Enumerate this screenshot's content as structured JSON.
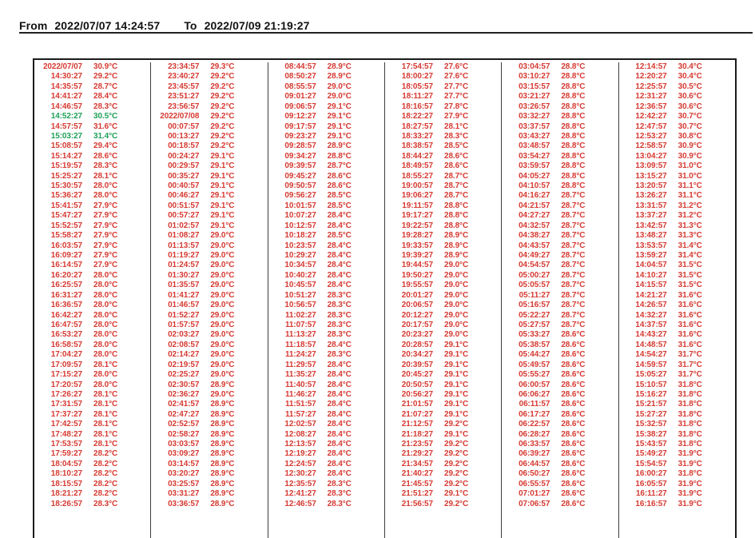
{
  "header": {
    "from_label": "From",
    "from_value": "2022/07/07 14:24:57",
    "to_label": "To",
    "to_value": "2022/07/09 21:19:27"
  },
  "colors": {
    "text_red": "#d63a32",
    "text_green": "#1fa05a",
    "border": "#1b1b1b"
  },
  "table": {
    "unit": "°C",
    "record_interval": "00:05:30",
    "green_cells": [
      [
        0,
        5
      ],
      [
        0,
        7
      ]
    ],
    "columns": [
      {
        "rows": [
          [
            "2022/07/07",
            "30.9°C"
          ],
          [
            "14:30:27",
            "29.2°C"
          ],
          [
            "14:35:57",
            "28.7°C"
          ],
          [
            "14:41:27",
            "28.4°C"
          ],
          [
            "14:46:57",
            "28.3°C"
          ],
          [
            "14:52:27",
            "30.5°C"
          ],
          [
            "14:57:57",
            "31.6°C"
          ],
          [
            "15:03:27",
            "31.4°C"
          ],
          [
            "15:08:57",
            "29.4°C"
          ],
          [
            "15:14:27",
            "28.6°C"
          ],
          [
            "15:19:57",
            "28.3°C"
          ],
          [
            "15:25:27",
            "28.1°C"
          ],
          [
            "15:30:57",
            "28.0°C"
          ],
          [
            "15:36:27",
            "28.0°C"
          ],
          [
            "15:41:57",
            "27.9°C"
          ],
          [
            "15:47:27",
            "27.9°C"
          ],
          [
            "15:52:57",
            "27.9°C"
          ],
          [
            "15:58:27",
            "27.9°C"
          ],
          [
            "16:03:57",
            "27.9°C"
          ],
          [
            "16:09:27",
            "27.9°C"
          ],
          [
            "16:14:57",
            "27.9°C"
          ],
          [
            "16:20:27",
            "28.0°C"
          ],
          [
            "16:25:57",
            "28.0°C"
          ],
          [
            "16:31:27",
            "28.0°C"
          ],
          [
            "16:36:57",
            "28.0°C"
          ],
          [
            "16:42:27",
            "28.0°C"
          ],
          [
            "16:47:57",
            "28.0°C"
          ],
          [
            "16:53:27",
            "28.0°C"
          ],
          [
            "16:58:57",
            "28.0°C"
          ],
          [
            "17:04:27",
            "28.0°C"
          ],
          [
            "17:09:57",
            "28.1°C"
          ],
          [
            "17:15:27",
            "28.0°C"
          ],
          [
            "17:20:57",
            "28.0°C"
          ],
          [
            "17:26:27",
            "28.1°C"
          ],
          [
            "17:31:57",
            "28.1°C"
          ],
          [
            "17:37:27",
            "28.1°C"
          ],
          [
            "17:42:57",
            "28.1°C"
          ],
          [
            "17:48:27",
            "28.1°C"
          ],
          [
            "17:53:57",
            "28.1°C"
          ],
          [
            "17:59:27",
            "28.2°C"
          ],
          [
            "18:04:57",
            "28.2°C"
          ],
          [
            "18:10:27",
            "28.2°C"
          ],
          [
            "18:15:57",
            "28.2°C"
          ],
          [
            "18:21:27",
            "28.2°C"
          ],
          [
            "18:26:57",
            "28.3°C"
          ]
        ]
      },
      {
        "rows": [
          [
            "23:34:57",
            "29.3°C"
          ],
          [
            "23:40:27",
            "29.2°C"
          ],
          [
            "23:45:57",
            "29.2°C"
          ],
          [
            "23:51:27",
            "29.2°C"
          ],
          [
            "23:56:57",
            "29.2°C"
          ],
          [
            "2022/07/08",
            "29.2°C"
          ],
          [
            "00:07:57",
            "29.2°C"
          ],
          [
            "00:13:27",
            "29.2°C"
          ],
          [
            "00:18:57",
            "29.2°C"
          ],
          [
            "00:24:27",
            "29.1°C"
          ],
          [
            "00:29:57",
            "29.1°C"
          ],
          [
            "00:35:27",
            "29.1°C"
          ],
          [
            "00:40:57",
            "29.1°C"
          ],
          [
            "00:46:27",
            "29.1°C"
          ],
          [
            "00:51:57",
            "29.1°C"
          ],
          [
            "00:57:27",
            "29.1°C"
          ],
          [
            "01:02:57",
            "29.1°C"
          ],
          [
            "01:08:27",
            "29.0°C"
          ],
          [
            "01:13:57",
            "29.0°C"
          ],
          [
            "01:19:27",
            "29.0°C"
          ],
          [
            "01:24:57",
            "29.0°C"
          ],
          [
            "01:30:27",
            "29.0°C"
          ],
          [
            "01:35:57",
            "29.0°C"
          ],
          [
            "01:41:27",
            "29.0°C"
          ],
          [
            "01:46:57",
            "29.0°C"
          ],
          [
            "01:52:27",
            "29.0°C"
          ],
          [
            "01:57:57",
            "29.0°C"
          ],
          [
            "02:03:27",
            "29.0°C"
          ],
          [
            "02:08:57",
            "29.0°C"
          ],
          [
            "02:14:27",
            "29.0°C"
          ],
          [
            "02:19:57",
            "29.0°C"
          ],
          [
            "02:25:27",
            "29.0°C"
          ],
          [
            "02:30:57",
            "28.9°C"
          ],
          [
            "02:36:27",
            "29.0°C"
          ],
          [
            "02:41:57",
            "28.9°C"
          ],
          [
            "02:47:27",
            "28.9°C"
          ],
          [
            "02:52:57",
            "28.9°C"
          ],
          [
            "02:58:27",
            "28.9°C"
          ],
          [
            "03:03:57",
            "28.9°C"
          ],
          [
            "03:09:27",
            "28.9°C"
          ],
          [
            "03:14:57",
            "28.9°C"
          ],
          [
            "03:20:27",
            "28.9°C"
          ],
          [
            "03:25:57",
            "28.9°C"
          ],
          [
            "03:31:27",
            "28.9°C"
          ],
          [
            "03:36:57",
            "28.9°C"
          ]
        ]
      },
      {
        "rows": [
          [
            "08:44:57",
            "28.9°C"
          ],
          [
            "08:50:27",
            "28.9°C"
          ],
          [
            "08:55:57",
            "29.0°C"
          ],
          [
            "09:01:27",
            "29.0°C"
          ],
          [
            "09:06:57",
            "29.1°C"
          ],
          [
            "09:12:27",
            "29.1°C"
          ],
          [
            "09:17:57",
            "29.1°C"
          ],
          [
            "09:23:27",
            "29.1°C"
          ],
          [
            "09:28:57",
            "28.9°C"
          ],
          [
            "09:34:27",
            "28.8°C"
          ],
          [
            "09:39:57",
            "28.7°C"
          ],
          [
            "09:45:27",
            "28.6°C"
          ],
          [
            "09:50:57",
            "28.6°C"
          ],
          [
            "09:56:27",
            "28.5°C"
          ],
          [
            "10:01:57",
            "28.5°C"
          ],
          [
            "10:07:27",
            "28.4°C"
          ],
          [
            "10:12:57",
            "28.4°C"
          ],
          [
            "10:18:27",
            "28.5°C"
          ],
          [
            "10:23:57",
            "28.4°C"
          ],
          [
            "10:29:27",
            "28.4°C"
          ],
          [
            "10:34:57",
            "28.4°C"
          ],
          [
            "10:40:27",
            "28.4°C"
          ],
          [
            "10:45:57",
            "28.4°C"
          ],
          [
            "10:51:27",
            "28.3°C"
          ],
          [
            "10:56:57",
            "28.3°C"
          ],
          [
            "11:02:27",
            "28.3°C"
          ],
          [
            "11:07:57",
            "28.3°C"
          ],
          [
            "11:13:27",
            "28.3°C"
          ],
          [
            "11:18:57",
            "28.4°C"
          ],
          [
            "11:24:27",
            "28.3°C"
          ],
          [
            "11:29:57",
            "28.4°C"
          ],
          [
            "11:35:27",
            "28.4°C"
          ],
          [
            "11:40:57",
            "28.4°C"
          ],
          [
            "11:46:27",
            "28.4°C"
          ],
          [
            "11:51:57",
            "28.4°C"
          ],
          [
            "11:57:27",
            "28.4°C"
          ],
          [
            "12:02:57",
            "28.4°C"
          ],
          [
            "12:08:27",
            "28.4°C"
          ],
          [
            "12:13:57",
            "28.4°C"
          ],
          [
            "12:19:27",
            "28.4°C"
          ],
          [
            "12:24:57",
            "28.4°C"
          ],
          [
            "12:30:27",
            "28.4°C"
          ],
          [
            "12:35:57",
            "28.3°C"
          ],
          [
            "12:41:27",
            "28.3°C"
          ],
          [
            "12:46:57",
            "28.3°C"
          ]
        ]
      },
      {
        "rows": [
          [
            "17:54:57",
            "27.6°C"
          ],
          [
            "18:00:27",
            "27.6°C"
          ],
          [
            "18:05:57",
            "27.7°C"
          ],
          [
            "18:11:27",
            "27.7°C"
          ],
          [
            "18:16:57",
            "27.8°C"
          ],
          [
            "18:22:27",
            "27.9°C"
          ],
          [
            "18:27:57",
            "28.1°C"
          ],
          [
            "18:33:27",
            "28.3°C"
          ],
          [
            "18:38:57",
            "28.5°C"
          ],
          [
            "18:44:27",
            "28.6°C"
          ],
          [
            "18:49:57",
            "28.6°C"
          ],
          [
            "18:55:27",
            "28.7°C"
          ],
          [
            "19:00:57",
            "28.7°C"
          ],
          [
            "19:06:27",
            "28.7°C"
          ],
          [
            "19:11:57",
            "28.8°C"
          ],
          [
            "19:17:27",
            "28.8°C"
          ],
          [
            "19:22:57",
            "28.8°C"
          ],
          [
            "19:28:27",
            "28.9°C"
          ],
          [
            "19:33:57",
            "28.9°C"
          ],
          [
            "19:39:27",
            "28.9°C"
          ],
          [
            "19:44:57",
            "29.0°C"
          ],
          [
            "19:50:27",
            "29.0°C"
          ],
          [
            "19:55:57",
            "29.0°C"
          ],
          [
            "20:01:27",
            "29.0°C"
          ],
          [
            "20:06:57",
            "29.0°C"
          ],
          [
            "20:12:27",
            "29.0°C"
          ],
          [
            "20:17:57",
            "29.0°C"
          ],
          [
            "20:23:27",
            "29.0°C"
          ],
          [
            "20:28:57",
            "29.1°C"
          ],
          [
            "20:34:27",
            "29.1°C"
          ],
          [
            "20:39:57",
            "29.1°C"
          ],
          [
            "20:45:27",
            "29.1°C"
          ],
          [
            "20:50:57",
            "29.1°C"
          ],
          [
            "20:56:27",
            "29.1°C"
          ],
          [
            "21:01:57",
            "29.1°C"
          ],
          [
            "21:07:27",
            "29.1°C"
          ],
          [
            "21:12:57",
            "29.2°C"
          ],
          [
            "21:18:27",
            "29.1°C"
          ],
          [
            "21:23:57",
            "29.2°C"
          ],
          [
            "21:29:27",
            "29.2°C"
          ],
          [
            "21:34:57",
            "29.2°C"
          ],
          [
            "21:40:27",
            "29.2°C"
          ],
          [
            "21:45:57",
            "29.2°C"
          ],
          [
            "21:51:27",
            "29.1°C"
          ],
          [
            "21:56:57",
            "29.2°C"
          ]
        ]
      },
      {
        "rows": [
          [
            "03:04:57",
            "28.8°C"
          ],
          [
            "03:10:27",
            "28.8°C"
          ],
          [
            "03:15:57",
            "28.8°C"
          ],
          [
            "03:21:27",
            "28.8°C"
          ],
          [
            "03:26:57",
            "28.8°C"
          ],
          [
            "03:32:27",
            "28.8°C"
          ],
          [
            "03:37:57",
            "28.8°C"
          ],
          [
            "03:43:27",
            "28.8°C"
          ],
          [
            "03:48:57",
            "28.8°C"
          ],
          [
            "03:54:27",
            "28.8°C"
          ],
          [
            "03:59:57",
            "28.8°C"
          ],
          [
            "04:05:27",
            "28.8°C"
          ],
          [
            "04:10:57",
            "28.8°C"
          ],
          [
            "04:16:27",
            "28.7°C"
          ],
          [
            "04:21:57",
            "28.7°C"
          ],
          [
            "04:27:27",
            "28.7°C"
          ],
          [
            "04:32:57",
            "28.7°C"
          ],
          [
            "04:38:27",
            "28.7°C"
          ],
          [
            "04:43:57",
            "28.7°C"
          ],
          [
            "04:49:27",
            "28.7°C"
          ],
          [
            "04:54:57",
            "28.7°C"
          ],
          [
            "05:00:27",
            "28.7°C"
          ],
          [
            "05:05:57",
            "28.7°C"
          ],
          [
            "05:11:27",
            "28.7°C"
          ],
          [
            "05:16:57",
            "28.7°C"
          ],
          [
            "05:22:27",
            "28.7°C"
          ],
          [
            "05:27:57",
            "28.7°C"
          ],
          [
            "05:33:27",
            "28.6°C"
          ],
          [
            "05:38:57",
            "28.6°C"
          ],
          [
            "05:44:27",
            "28.6°C"
          ],
          [
            "05:49:57",
            "28.6°C"
          ],
          [
            "05:55:27",
            "28.6°C"
          ],
          [
            "06:00:57",
            "28.6°C"
          ],
          [
            "06:06:27",
            "28.6°C"
          ],
          [
            "06:11:57",
            "28.6°C"
          ],
          [
            "06:17:27",
            "28.6°C"
          ],
          [
            "06:22:57",
            "28.6°C"
          ],
          [
            "06:28:27",
            "28.6°C"
          ],
          [
            "06:33:57",
            "28.6°C"
          ],
          [
            "06:39:27",
            "28.6°C"
          ],
          [
            "06:44:57",
            "28.6°C"
          ],
          [
            "06:50:27",
            "28.6°C"
          ],
          [
            "06:55:57",
            "28.6°C"
          ],
          [
            "07:01:27",
            "28.6°C"
          ],
          [
            "07:06:57",
            "28.6°C"
          ]
        ]
      },
      {
        "rows": [
          [
            "12:14:57",
            "30.4°C"
          ],
          [
            "12:20:27",
            "30.4°C"
          ],
          [
            "12:25:57",
            "30.5°C"
          ],
          [
            "12:31:27",
            "30.6°C"
          ],
          [
            "12:36:57",
            "30.6°C"
          ],
          [
            "12:42:27",
            "30.7°C"
          ],
          [
            "12:47:57",
            "30.7°C"
          ],
          [
            "12:53:27",
            "30.8°C"
          ],
          [
            "12:58:57",
            "30.9°C"
          ],
          [
            "13:04:27",
            "30.9°C"
          ],
          [
            "13:09:57",
            "31.0°C"
          ],
          [
            "13:15:27",
            "31.0°C"
          ],
          [
            "13:20:57",
            "31.1°C"
          ],
          [
            "13:26:27",
            "31.1°C"
          ],
          [
            "13:31:57",
            "31.2°C"
          ],
          [
            "13:37:27",
            "31.2°C"
          ],
          [
            "13:42:57",
            "31.3°C"
          ],
          [
            "13:48:27",
            "31.3°C"
          ],
          [
            "13:53:57",
            "31.4°C"
          ],
          [
            "13:59:27",
            "31.4°C"
          ],
          [
            "14:04:57",
            "31.5°C"
          ],
          [
            "14:10:27",
            "31.5°C"
          ],
          [
            "14:15:57",
            "31.5°C"
          ],
          [
            "14:21:27",
            "31.6°C"
          ],
          [
            "14:26:57",
            "31.6°C"
          ],
          [
            "14:32:27",
            "31.6°C"
          ],
          [
            "14:37:57",
            "31.6°C"
          ],
          [
            "14:43:27",
            "31.6°C"
          ],
          [
            "14:48:57",
            "31.6°C"
          ],
          [
            "14:54:27",
            "31.7°C"
          ],
          [
            "14:59:57",
            "31.7°C"
          ],
          [
            "15:05:27",
            "31.7°C"
          ],
          [
            "15:10:57",
            "31.8°C"
          ],
          [
            "15:16:27",
            "31.8°C"
          ],
          [
            "15:21:57",
            "31.8°C"
          ],
          [
            "15:27:27",
            "31.8°C"
          ],
          [
            "15:32:57",
            "31.8°C"
          ],
          [
            "15:38:27",
            "31.8°C"
          ],
          [
            "15:43:57",
            "31.8°C"
          ],
          [
            "15:49:27",
            "31.9°C"
          ],
          [
            "15:54:57",
            "31.9°C"
          ],
          [
            "16:00:27",
            "31.8°C"
          ],
          [
            "16:05:57",
            "31.9°C"
          ],
          [
            "16:11:27",
            "31.9°C"
          ],
          [
            "16:16:57",
            "31.9°C"
          ]
        ]
      }
    ]
  }
}
